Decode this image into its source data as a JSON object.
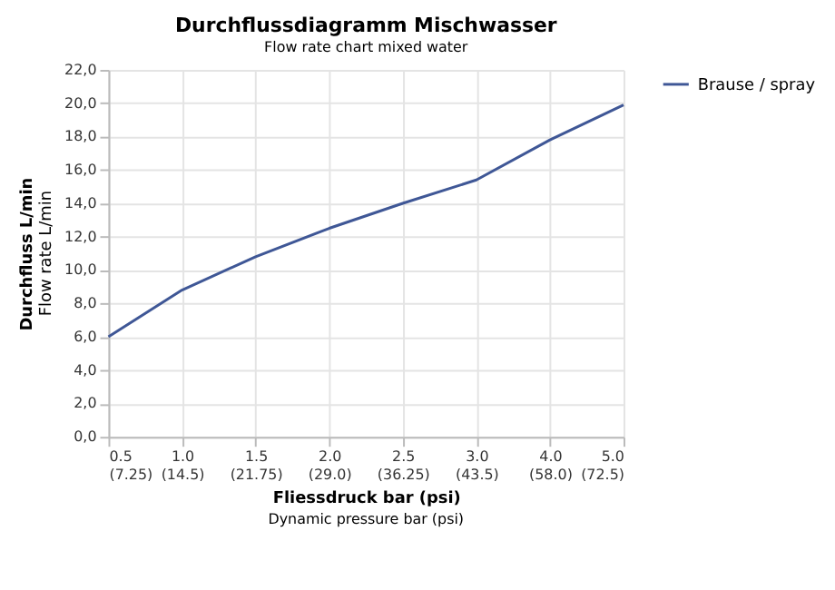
{
  "chart_data": {
    "type": "line",
    "title": "Durchflussdiagramm Mischwasser",
    "subtitle": "Flow rate chart mixed water",
    "xlabel": "Fliessdruck bar (psi)",
    "ylabel": "Durchfluss L/min",
    "annotations": [
      "Dynamic pressure bar (psi)",
      "Flow rate L/min"
    ],
    "categories": [
      "0.5\n(7.25)",
      "1.0\n(14.5)",
      "1.5\n(21.75)",
      "2.0\n(29.0)",
      "2.5\n(36.25)",
      "3.0\n(43.5)",
      "4.0\n(58.0)",
      "5.0\n(72.5)"
    ],
    "series": [
      {
        "name": "Brause / spray",
        "color": "#3f5796",
        "values": [
          6.0,
          8.8,
          10.8,
          12.5,
          14.0,
          15.4,
          17.8,
          19.9
        ]
      }
    ],
    "ylim": [
      0,
      22
    ],
    "yticks": [
      {
        "value": 0,
        "label": "0,0"
      },
      {
        "value": 2,
        "label": "2,0"
      },
      {
        "value": 4,
        "label": "4,0"
      },
      {
        "value": 6,
        "label": "6,0"
      },
      {
        "value": 8,
        "label": "8,0"
      },
      {
        "value": 10,
        "label": "10,0"
      },
      {
        "value": 12,
        "label": "12,0"
      },
      {
        "value": 14,
        "label": "14,0"
      },
      {
        "value": 16,
        "label": "16,0"
      },
      {
        "value": 18,
        "label": "18,0"
      },
      {
        "value": 20,
        "label": "20,0"
      },
      {
        "value": 22,
        "label": "22,0"
      }
    ],
    "grid": true,
    "legend": "right",
    "marker": "none",
    "line_style": "solid"
  }
}
